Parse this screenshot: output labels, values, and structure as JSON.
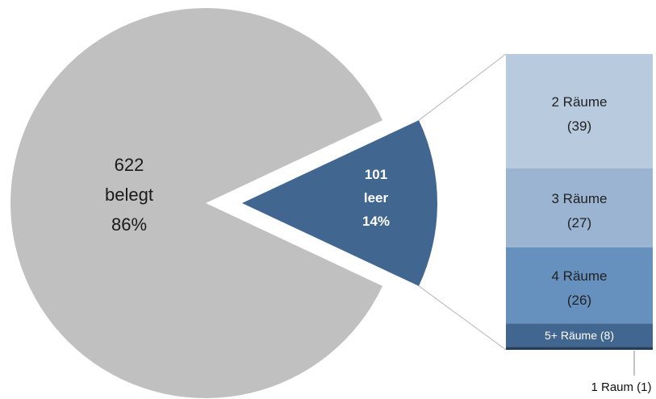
{
  "chart_data": {
    "type": "pie",
    "title": "",
    "pie": {
      "slices": [
        {
          "key": "belegt",
          "label_count": "622",
          "label_name": "belegt",
          "label_pct": "86%",
          "value": 622,
          "percent": 86,
          "color": "#c0c0c0",
          "text_color": "#1a1a1a"
        },
        {
          "key": "leer",
          "label_count": "101",
          "label_name": "leer",
          "label_pct": "14%",
          "value": 101,
          "percent": 14,
          "color": "#41668f",
          "text_color": "#ffffff",
          "exploded": true
        }
      ]
    },
    "breakdown": {
      "of_slice": "leer",
      "segments": [
        {
          "key": "two",
          "line1": "2 Räume",
          "line2": "(39)",
          "value": 39,
          "color": "#b8cade",
          "text_color": "#222222"
        },
        {
          "key": "three",
          "line1": "3 Räume",
          "line2": "(27)",
          "value": 27,
          "color": "#9ab4d1",
          "text_color": "#222222"
        },
        {
          "key": "four",
          "line1": "4 Räume",
          "line2": "(26)",
          "value": 26,
          "color": "#6690bd",
          "text_color": "#222222"
        },
        {
          "key": "five_plus",
          "line1": "5+ Räume (8)",
          "value": 8,
          "color": "#41668f",
          "text_color": "#ffffff"
        },
        {
          "key": "one",
          "line1": "1 Raum (1)",
          "value": 1,
          "color": "#253e5c",
          "text_color": "#111111",
          "label_outside": true
        }
      ]
    }
  }
}
